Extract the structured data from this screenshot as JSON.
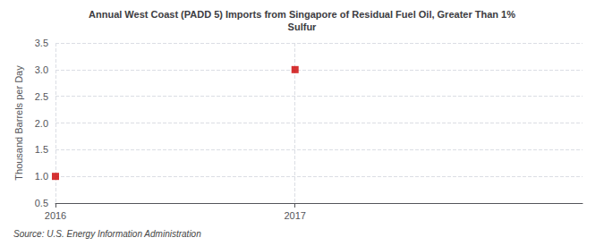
{
  "chart_data": {
    "type": "scatter",
    "title": "Annual West Coast (PADD 5) Imports from Singapore of Residual Fuel Oil, Greater Than 1%\nSulfur",
    "ylabel": "Thousand Barrels per Day",
    "source": "Source: U.S. Energy Information Administration",
    "x": [
      2016,
      2017
    ],
    "values": [
      1.0,
      3.0
    ],
    "color": "#cc0000",
    "marker": "square",
    "xlim": [
      2016.0,
      2018.2
    ],
    "xticks": [
      2016,
      2017
    ],
    "ylim": [
      0.5,
      3.5
    ],
    "yticks": [
      0.5,
      {
        "value": 1.0,
        "label": "1.0"
      },
      1.5,
      {
        "value": 2.0,
        "label": "2.0"
      },
      2.5,
      {
        "value": 3.0,
        "label": "3.0"
      },
      3.5
    ],
    "grid": true
  }
}
